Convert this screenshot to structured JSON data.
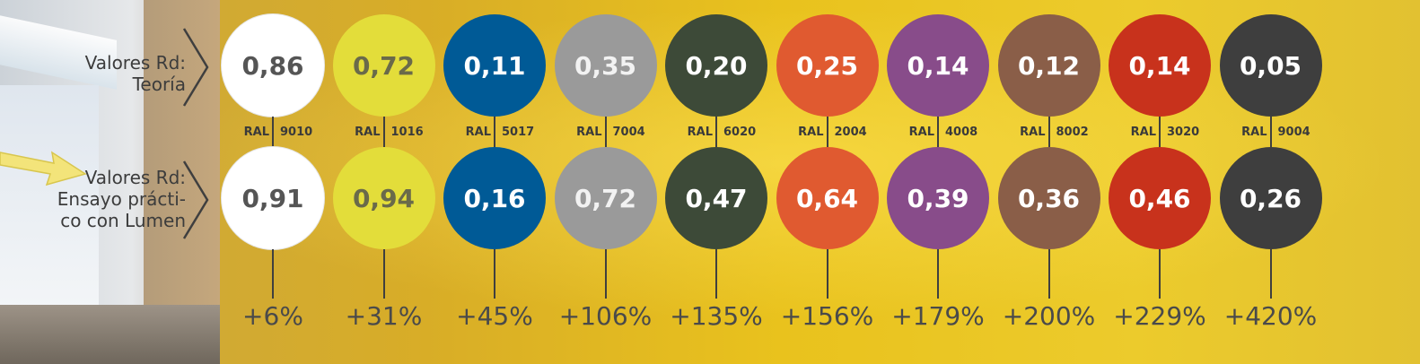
{
  "labels": {
    "theory_line1": "Valores Rd:",
    "theory_line2": "Teoría",
    "practice_line1": "Valores Rd:",
    "practice_line2": "Ensayo prácti-",
    "practice_line3": "co con Lumen"
  },
  "ral_prefix": "RAL",
  "swatches": [
    {
      "ral": "9010",
      "theory": "0,86",
      "practice": "0,91",
      "increase": "+6%",
      "color": "#ffffff",
      "text_color": "#555555"
    },
    {
      "ral": "1016",
      "theory": "0,72",
      "practice": "0,94",
      "increase": "+31%",
      "color": "#e3dd3a",
      "text_color": "#6a6a4a"
    },
    {
      "ral": "5017",
      "theory": "0,11",
      "practice": "0,16",
      "increase": "+45%",
      "color": "#005a96",
      "text_color": "#ffffff"
    },
    {
      "ral": "7004",
      "theory": "0,35",
      "practice": "0,72",
      "increase": "+106%",
      "color": "#9a9a9a",
      "text_color": "#f2f2f2"
    },
    {
      "ral": "6020",
      "theory": "0,20",
      "practice": "0,47",
      "increase": "+135%",
      "color": "#3d4a38",
      "text_color": "#ffffff"
    },
    {
      "ral": "2004",
      "theory": "0,25",
      "practice": "0,64",
      "increase": "+156%",
      "color": "#e05a30",
      "text_color": "#ffffff"
    },
    {
      "ral": "4008",
      "theory": "0,14",
      "practice": "0,39",
      "increase": "+179%",
      "color": "#884c8a",
      "text_color": "#ffffff"
    },
    {
      "ral": "8002",
      "theory": "0,12",
      "practice": "0,36",
      "increase": "+200%",
      "color": "#8a5e48",
      "text_color": "#ffffff"
    },
    {
      "ral": "3020",
      "theory": "0,14",
      "practice": "0,46",
      "increase": "+229%",
      "color": "#c8321c",
      "text_color": "#ffffff"
    },
    {
      "ral": "9004",
      "theory": "0,05",
      "practice": "0,26",
      "increase": "+420%",
      "color": "#3e3e3e",
      "text_color": "#ffffff"
    }
  ]
}
